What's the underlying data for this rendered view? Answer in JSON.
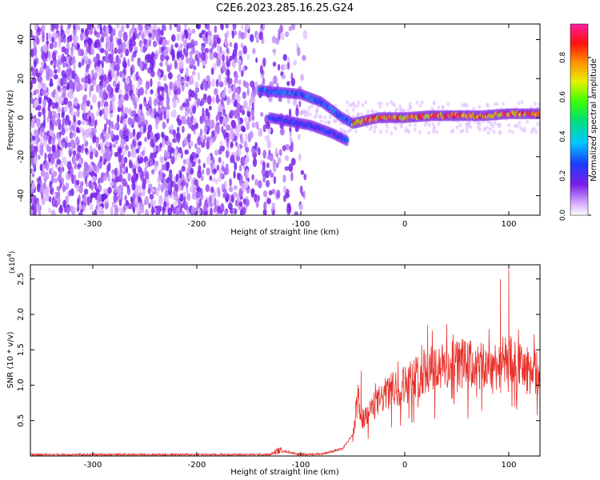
{
  "title": "C2E6.2023.285.16.25.G24",
  "colors": {
    "snr_line": "#e8302a",
    "frame": "#000000"
  },
  "chart_data": [
    {
      "type": "heatmap",
      "xlabel": "Height of straight line (km)",
      "ylabel": "Frequency (Hz)",
      "xlim": [
        -360,
        130
      ],
      "ylim": [
        -50,
        48
      ],
      "x_ticks": [
        -300,
        -200,
        -100,
        0,
        100
      ],
      "y_ticks": [
        -40,
        -20,
        0,
        20,
        40
      ],
      "colorbar": {
        "label": "Normalized spectral amplitude",
        "range": [
          0,
          0.97
        ],
        "ticks": [
          0.0,
          0.2,
          0.4,
          0.6,
          0.8
        ],
        "colormap": "rainbow (white, violet, blue, cyan, green, yellow, orange, red, magenta)"
      },
      "regions": [
        {
          "name": "noise",
          "x": [
            -360,
            -95
          ],
          "y": [
            -50,
            48
          ],
          "amplitude": 0.05
        },
        {
          "name": "signal-branch-upper",
          "points": [
            [
              -140,
              14
            ],
            [
              -120,
              13
            ],
            [
              -100,
              12
            ],
            [
              -80,
              8
            ],
            [
              -60,
              0
            ],
            [
              -50,
              -3
            ]
          ],
          "amplitude": 0.35
        },
        {
          "name": "signal-branch-lower",
          "points": [
            [
              -130,
              0
            ],
            [
              -110,
              -2
            ],
            [
              -90,
              -4
            ],
            [
              -70,
              -8
            ],
            [
              -55,
              -12
            ]
          ],
          "amplitude": 0.3
        },
        {
          "name": "signal-main",
          "points": [
            [
              -50,
              -3
            ],
            [
              -25,
              0
            ],
            [
              0,
              0
            ],
            [
              25,
              1
            ],
            [
              50,
              1
            ],
            [
              75,
              1
            ],
            [
              100,
              2
            ],
            [
              130,
              2
            ]
          ],
          "amplitude": 0.9
        }
      ]
    },
    {
      "type": "line",
      "xlabel": "Height of straight line (km)",
      "ylabel": "SNR (10 * v/v)",
      "y_multiplier_label": "(x10",
      "y_multiplier_exp": "4",
      "y_multiplier_close": ")",
      "xlim": [
        -360,
        130
      ],
      "ylim": [
        0,
        2.7
      ],
      "x_ticks": [
        -300,
        -200,
        -100,
        0,
        100
      ],
      "y_ticks": [
        0.5,
        1.0,
        1.5,
        2.0,
        2.5
      ],
      "series": [
        {
          "x": [
            -360,
            -200,
            -130,
            -120,
            -100,
            -80,
            -60,
            -50,
            -45,
            -40,
            -35,
            -30,
            -20,
            -10,
            0,
            10,
            20,
            30,
            40,
            50,
            60,
            70,
            80,
            90,
            100,
            110,
            120,
            130
          ],
          "y": [
            0.02,
            0.02,
            0.02,
            0.08,
            0.02,
            0.03,
            0.1,
            0.3,
            0.8,
            0.5,
            0.6,
            0.7,
            0.85,
            0.95,
            1.0,
            1.1,
            1.2,
            1.25,
            1.25,
            1.3,
            1.3,
            1.25,
            1.25,
            1.3,
            1.35,
            1.25,
            1.2,
            1.15
          ]
        }
      ],
      "spikes": [
        [
          -42,
          1.2
        ],
        [
          22,
          1.85
        ],
        [
          55,
          1.65
        ],
        [
          92,
          2.5
        ],
        [
          100,
          2.63
        ],
        [
          110,
          1.55
        ],
        [
          125,
          1.5
        ]
      ]
    }
  ]
}
